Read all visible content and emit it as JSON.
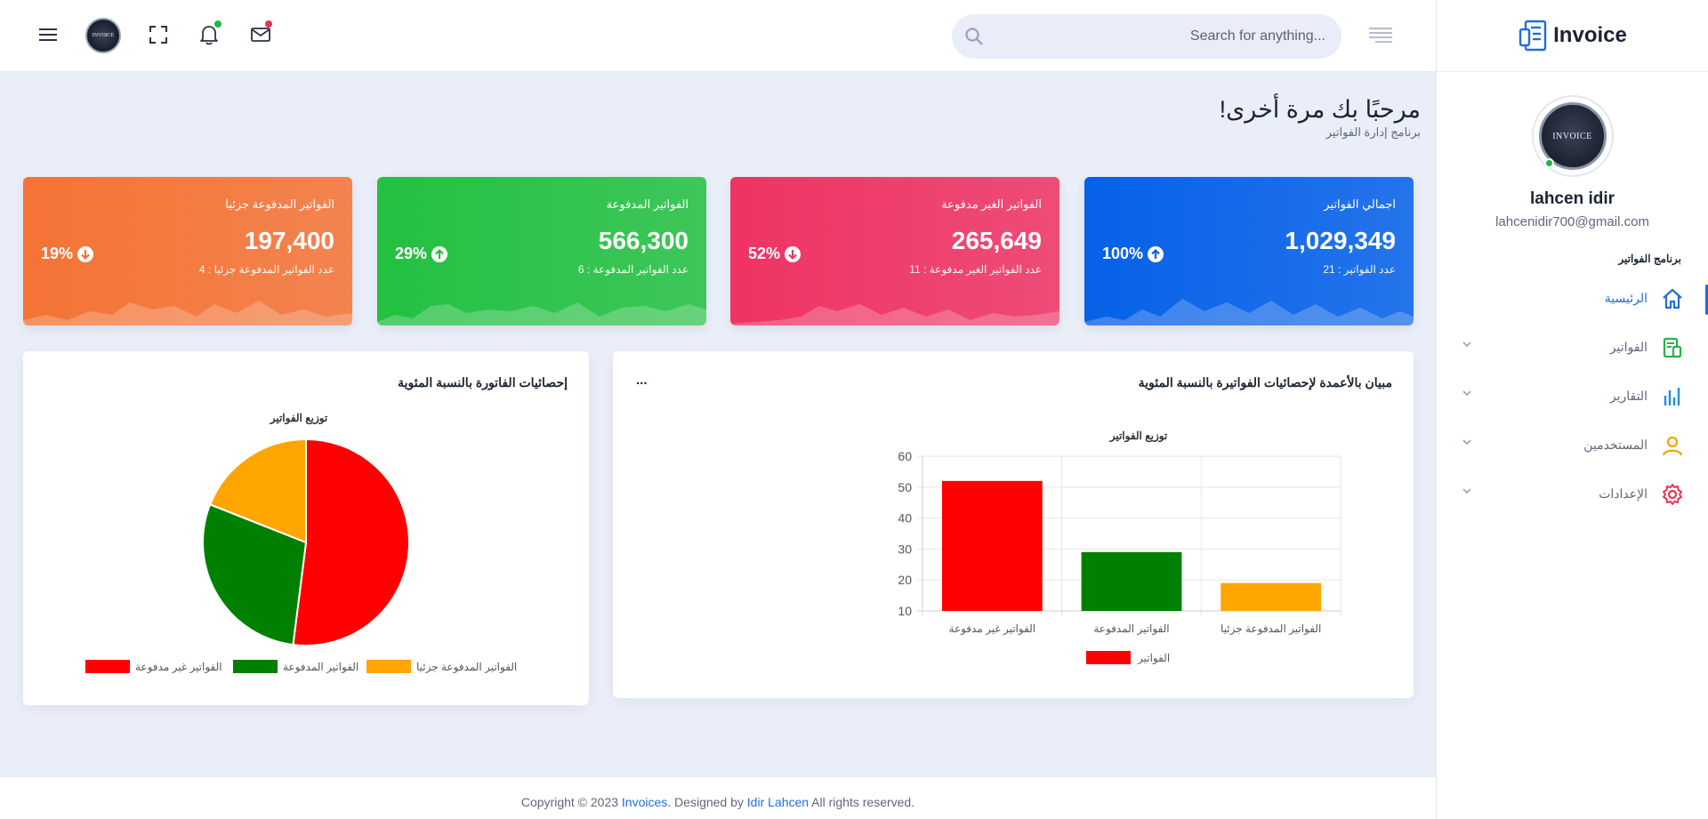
{
  "app": {
    "name": "Invoice"
  },
  "topbar": {
    "search_placeholder": "Search for anything...",
    "avatar_text": "INVOICE",
    "notification_dot_color": "#22b548",
    "mail_dot_color": "#e8344f"
  },
  "sidebar": {
    "avatar_text": "INVOICE",
    "user_name": "lahcen idir",
    "user_email": "lahcenidir700@gmail.com",
    "section_title": "برنامج الفواتير",
    "items": [
      {
        "label": "الرئيسية",
        "icon": "home-icon",
        "active": true,
        "color": "#1f6fd6"
      },
      {
        "label": "الفواتير",
        "icon": "invoice-icon",
        "active": false,
        "color": "#22b548"
      },
      {
        "label": "التقارير",
        "icon": "bar-chart-icon",
        "active": false,
        "color": "#1f8fe6"
      },
      {
        "label": "المستخدمين",
        "icon": "user-icon",
        "active": false,
        "color": "#f5a300"
      },
      {
        "label": "الإعدادات",
        "icon": "settings-icon",
        "active": false,
        "color": "#e8344f"
      }
    ]
  },
  "welcome": {
    "title": "مرحبًا بك مرة أخرى!",
    "subtitle": "برنامج إدارة الفواتير"
  },
  "cards": [
    {
      "title": "اجمالي الفواتير",
      "value": "1,029,349",
      "sub": "عدد الفواتير : 21",
      "percent": "100%",
      "trend": "up",
      "color": "#0661e8"
    },
    {
      "title": "الفواتير الغير مدفوعة",
      "value": "265,649",
      "sub": "عدد الفواتير الغير مدفوعة : 11",
      "percent": "52%",
      "trend": "down",
      "color": "#ef3363"
    },
    {
      "title": "الفواتير المدفوعة",
      "value": "566,300",
      "sub": "عدد الفواتير المدفوعة : 6",
      "percent": "29%",
      "trend": "up",
      "color": "#23c041"
    },
    {
      "title": "الفواتير المدفوعة جزئيا",
      "value": "197,400",
      "sub": "عدد الفواتير المدفوعة جزئيا : 4",
      "percent": "19%",
      "trend": "down",
      "color": "#f47335"
    }
  ],
  "bar_panel": {
    "title": "مبيان بالأعمدة لإحصائيات الفواتيرة بالنسبة المئوية",
    "more": "..."
  },
  "pie_panel": {
    "title": "إحصائيات الفاتورة بالنسبة المئوية"
  },
  "footer": {
    "prefix": "Copyright © 2023 ",
    "app_link": "Invoices",
    "middle": ". Designed by ",
    "author_link": "Idir Lahcen",
    "suffix": " All rights reserved."
  },
  "chart_data": [
    {
      "type": "bar",
      "title": "توزيع الفواتير",
      "categories": [
        "الفواتير غير مدفوعة",
        "الفواتير المدفوعة",
        "الفواتير المدفوعة جزئيا"
      ],
      "series": [
        {
          "name": "الفواتير",
          "values": [
            52,
            29,
            19
          ]
        }
      ],
      "colors": [
        "#ff0000",
        "#008000",
        "#ffa500"
      ],
      "legend_color": "#ff0000",
      "ylim": [
        10,
        60
      ],
      "yticks": [
        10,
        20,
        30,
        40,
        50,
        60
      ],
      "grid": true,
      "legend": "bottom"
    },
    {
      "type": "pie",
      "title": "توزيع الفواتير",
      "labels": [
        "الفواتير غير مدفوعة",
        "الفواتير المدفوعة",
        "الفواتير المدفوعة جزئيا"
      ],
      "values": [
        52,
        29,
        19
      ],
      "colors": [
        "#ff0000",
        "#008000",
        "#ffa500"
      ],
      "legend": "bottom"
    }
  ]
}
